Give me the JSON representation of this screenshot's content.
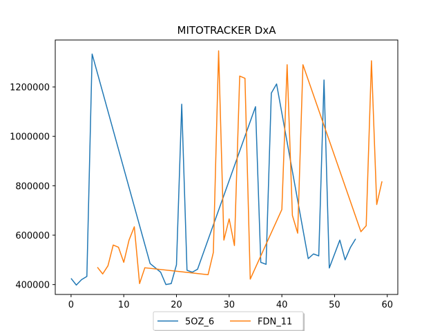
{
  "chart_data": {
    "type": "line",
    "title": "MITOTRACKER DxA",
    "xlabel": "",
    "ylabel": "",
    "xlim": [
      -3,
      62
    ],
    "ylim": [
      360000,
      1390000
    ],
    "xticks": [
      0,
      10,
      20,
      30,
      40,
      50,
      60
    ],
    "yticks": [
      400000,
      600000,
      800000,
      1000000,
      1200000
    ],
    "grid": false,
    "legend_position": "bottom-center",
    "series": [
      {
        "name": "5OZ_6",
        "color": "#1f77b4",
        "x": [
          0,
          1,
          2,
          3,
          4,
          15,
          17,
          18,
          19,
          20,
          21,
          22,
          23,
          24,
          35,
          36,
          37,
          38,
          39,
          45,
          46,
          47,
          48,
          49,
          51,
          52,
          53,
          54
        ],
        "y": [
          425000,
          398000,
          420000,
          433000,
          1333000,
          485000,
          450000,
          400000,
          404000,
          480000,
          1130000,
          458000,
          450000,
          462000,
          1120000,
          490000,
          482000,
          1175000,
          1212000,
          505000,
          524000,
          516000,
          1228000,
          467000,
          580000,
          500000,
          550000,
          585000
        ]
      },
      {
        "name": "FDN_11",
        "color": "#ff7f0e",
        "x": [
          5,
          6,
          7,
          8,
          9,
          10,
          11,
          12,
          13,
          14,
          26,
          27,
          28,
          29,
          30,
          31,
          32,
          33,
          34,
          40,
          41,
          42,
          43,
          44,
          55,
          56,
          57,
          58,
          59
        ],
        "y": [
          470000,
          443000,
          476000,
          560000,
          551000,
          490000,
          580000,
          634000,
          404000,
          468000,
          440000,
          530000,
          1346000,
          580000,
          666000,
          558000,
          1244000,
          1235000,
          422000,
          704000,
          1290000,
          680000,
          608000,
          1290000,
          614000,
          638000,
          1306000,
          724000,
          818000
        ]
      }
    ]
  }
}
